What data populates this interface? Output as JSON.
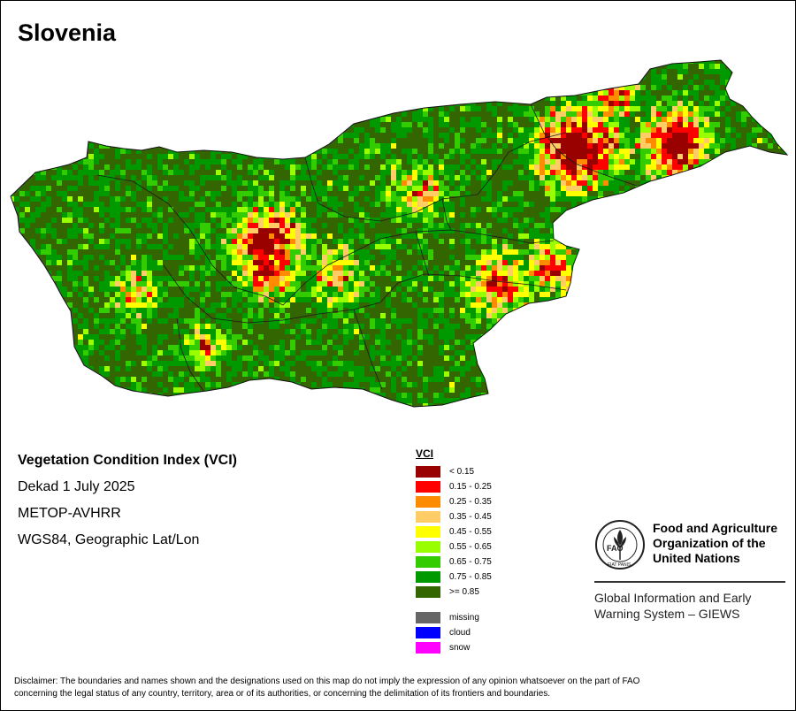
{
  "map": {
    "title": "Slovenia",
    "legend_title": "VCI",
    "legend_classes": [
      {
        "label": "< 0.15",
        "color": "#990000"
      },
      {
        "label": "0.15 - 0.25",
        "color": "#ff0000"
      },
      {
        "label": "0.25 - 0.35",
        "color": "#ff8c00"
      },
      {
        "label": "0.35 - 0.45",
        "color": "#ffcc66"
      },
      {
        "label": "0.45 - 0.55",
        "color": "#ffff00"
      },
      {
        "label": "0.55 - 0.65",
        "color": "#99ff00"
      },
      {
        "label": "0.65 - 0.75",
        "color": "#33cc00"
      },
      {
        "label": "0.75 - 0.85",
        "color": "#009900"
      },
      {
        "label": ">= 0.85",
        "color": "#336600"
      }
    ],
    "special_classes": [
      {
        "label": "missing",
        "color": "#666666"
      },
      {
        "label": "cloud",
        "color": "#0000ff"
      },
      {
        "label": "snow",
        "color": "#ff00ff"
      }
    ]
  },
  "info": {
    "index_name": "Vegetation Condition Index (VCI)",
    "period": "Dekad 1 July 2025",
    "sensor": "METOP-AVHRR",
    "projection": "WGS84, Geographic Lat/Lon"
  },
  "branding": {
    "logo_letters": "FAO",
    "logo_ring_text": "FIAT PANIS",
    "org_line1": "Food and Agriculture",
    "org_line2": "Organization of the",
    "org_line3": "United Nations",
    "giews_line1": "Global Information and Early",
    "giews_line2": "Warning System – GIEWS"
  },
  "disclaimer": {
    "line1": "Disclaimer: The boundaries and names shown and the designations used on this map do not imply the expression of any opinion whatsoever on the part of FAO",
    "line2": "concerning the legal status of any country, territory, area or of its authorities, or concerning the delimitation of its frontiers and boundaries."
  }
}
